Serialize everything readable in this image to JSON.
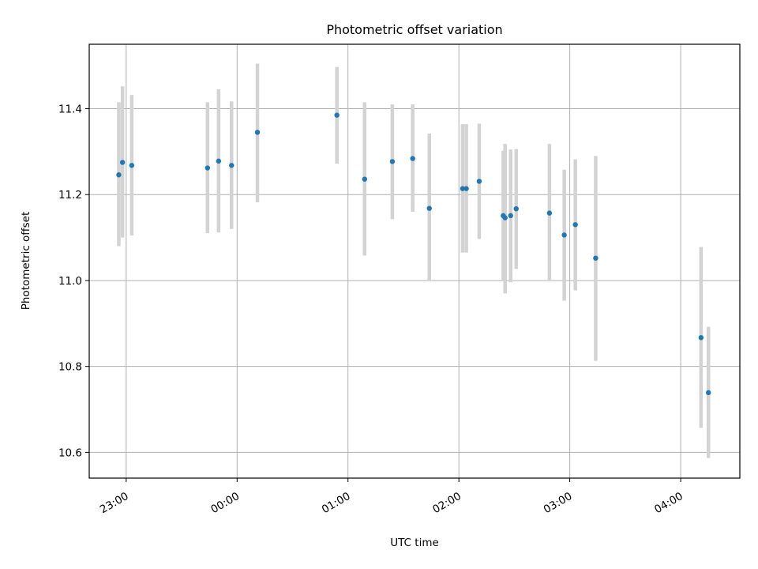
{
  "chart_data": {
    "type": "scatter",
    "title": "Photometric offset variation",
    "xlabel": "UTC time",
    "ylabel": "Photometric offset",
    "x_ticks": [
      "23:00",
      "00:00",
      "01:00",
      "02:00",
      "03:00",
      "04:00"
    ],
    "y_ticks": [
      "10.6",
      "10.8",
      "11.0",
      "11.2",
      "11.4"
    ],
    "x_range_minutes": [
      -20,
      332
    ],
    "ylim": [
      10.54,
      11.55
    ],
    "grid": true,
    "point_color": "#1f77b4",
    "errorbar_color": "#d3d3d3",
    "points": [
      {
        "time": "22:56",
        "y": 11.246,
        "low": 11.08,
        "high": 11.415
      },
      {
        "time": "22:58",
        "y": 11.275,
        "low": 11.1,
        "high": 11.452
      },
      {
        "time": "23:03",
        "y": 11.268,
        "low": 11.105,
        "high": 11.432
      },
      {
        "time": "23:44",
        "y": 11.262,
        "low": 11.11,
        "high": 11.415
      },
      {
        "time": "23:50",
        "y": 11.278,
        "low": 11.112,
        "high": 11.445
      },
      {
        "time": "23:57",
        "y": 11.268,
        "low": 11.12,
        "high": 11.417
      },
      {
        "time": "00:11",
        "y": 11.345,
        "low": 11.182,
        "high": 11.505
      },
      {
        "time": "00:54",
        "y": 11.385,
        "low": 11.272,
        "high": 11.497
      },
      {
        "time": "01:09",
        "y": 11.236,
        "low": 11.058,
        "high": 11.415
      },
      {
        "time": "01:24",
        "y": 11.277,
        "low": 11.143,
        "high": 11.41
      },
      {
        "time": "01:35",
        "y": 11.284,
        "low": 11.16,
        "high": 11.41
      },
      {
        "time": "01:44",
        "y": 11.168,
        "low": 10.998,
        "high": 11.342
      },
      {
        "time": "02:02",
        "y": 11.214,
        "low": 11.065,
        "high": 11.364
      },
      {
        "time": "02:04",
        "y": 11.214,
        "low": 11.065,
        "high": 11.364
      },
      {
        "time": "02:11",
        "y": 11.231,
        "low": 11.097,
        "high": 11.365
      },
      {
        "time": "02:24",
        "y": 11.151,
        "low": 10.998,
        "high": 11.302
      },
      {
        "time": "02:25",
        "y": 11.146,
        "low": 10.97,
        "high": 11.318
      },
      {
        "time": "02:28",
        "y": 11.151,
        "low": 10.996,
        "high": 11.305
      },
      {
        "time": "02:31",
        "y": 11.167,
        "low": 11.027,
        "high": 11.306
      },
      {
        "time": "02:49",
        "y": 11.157,
        "low": 10.998,
        "high": 11.318
      },
      {
        "time": "02:57",
        "y": 11.106,
        "low": 10.953,
        "high": 11.258
      },
      {
        "time": "03:03",
        "y": 11.13,
        "low": 10.977,
        "high": 11.282
      },
      {
        "time": "03:14",
        "y": 11.052,
        "low": 10.813,
        "high": 11.29
      },
      {
        "time": "04:11",
        "y": 10.867,
        "low": 10.657,
        "high": 11.078
      },
      {
        "time": "04:15",
        "y": 10.739,
        "low": 10.587,
        "high": 10.892
      }
    ]
  }
}
